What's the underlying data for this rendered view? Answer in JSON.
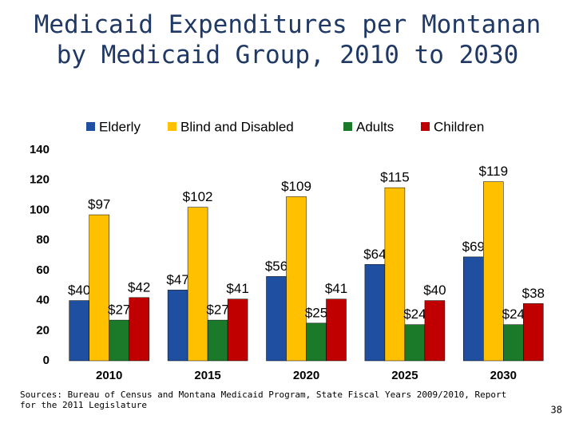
{
  "chart_data": {
    "type": "bar",
    "title": "Medicaid Expenditures per Montanan by Medicaid Group, 2010 to 2030",
    "categories": [
      "2010",
      "2015",
      "2020",
      "2025",
      "2030"
    ],
    "series": [
      {
        "name": "Elderly",
        "color": "#1f4fa0",
        "values": [
          40,
          47,
          56,
          64,
          69
        ],
        "value_labels": [
          "$40",
          "$47",
          "$56",
          "$64",
          "$69"
        ]
      },
      {
        "name": "Blind and Disabled",
        "color": "#ffc000",
        "values": [
          97,
          102,
          109,
          115,
          119
        ],
        "value_labels": [
          "$97",
          "$102",
          "$109",
          "$115",
          "$119"
        ]
      },
      {
        "name": "Adults",
        "color": "#1a7a2a",
        "values": [
          27,
          27,
          25,
          24,
          24
        ],
        "value_labels": [
          "$27",
          "$27",
          "$25",
          "$24",
          "$24"
        ]
      },
      {
        "name": "Children",
        "color": "#c00000",
        "values": [
          42,
          41,
          41,
          40,
          38
        ],
        "value_labels": [
          "$42",
          "$41",
          "$41",
          "$40",
          "$38"
        ]
      }
    ],
    "ylim": [
      0,
      140
    ],
    "yticks": [
      0,
      20,
      40,
      60,
      80,
      100,
      120,
      140
    ],
    "grid": false,
    "legend": "top",
    "source": "Sources: Bureau of Census and Montana Medicaid Program, State Fiscal Years 2009/2010, Report for the 2011 Legislature",
    "page_number": "38"
  }
}
